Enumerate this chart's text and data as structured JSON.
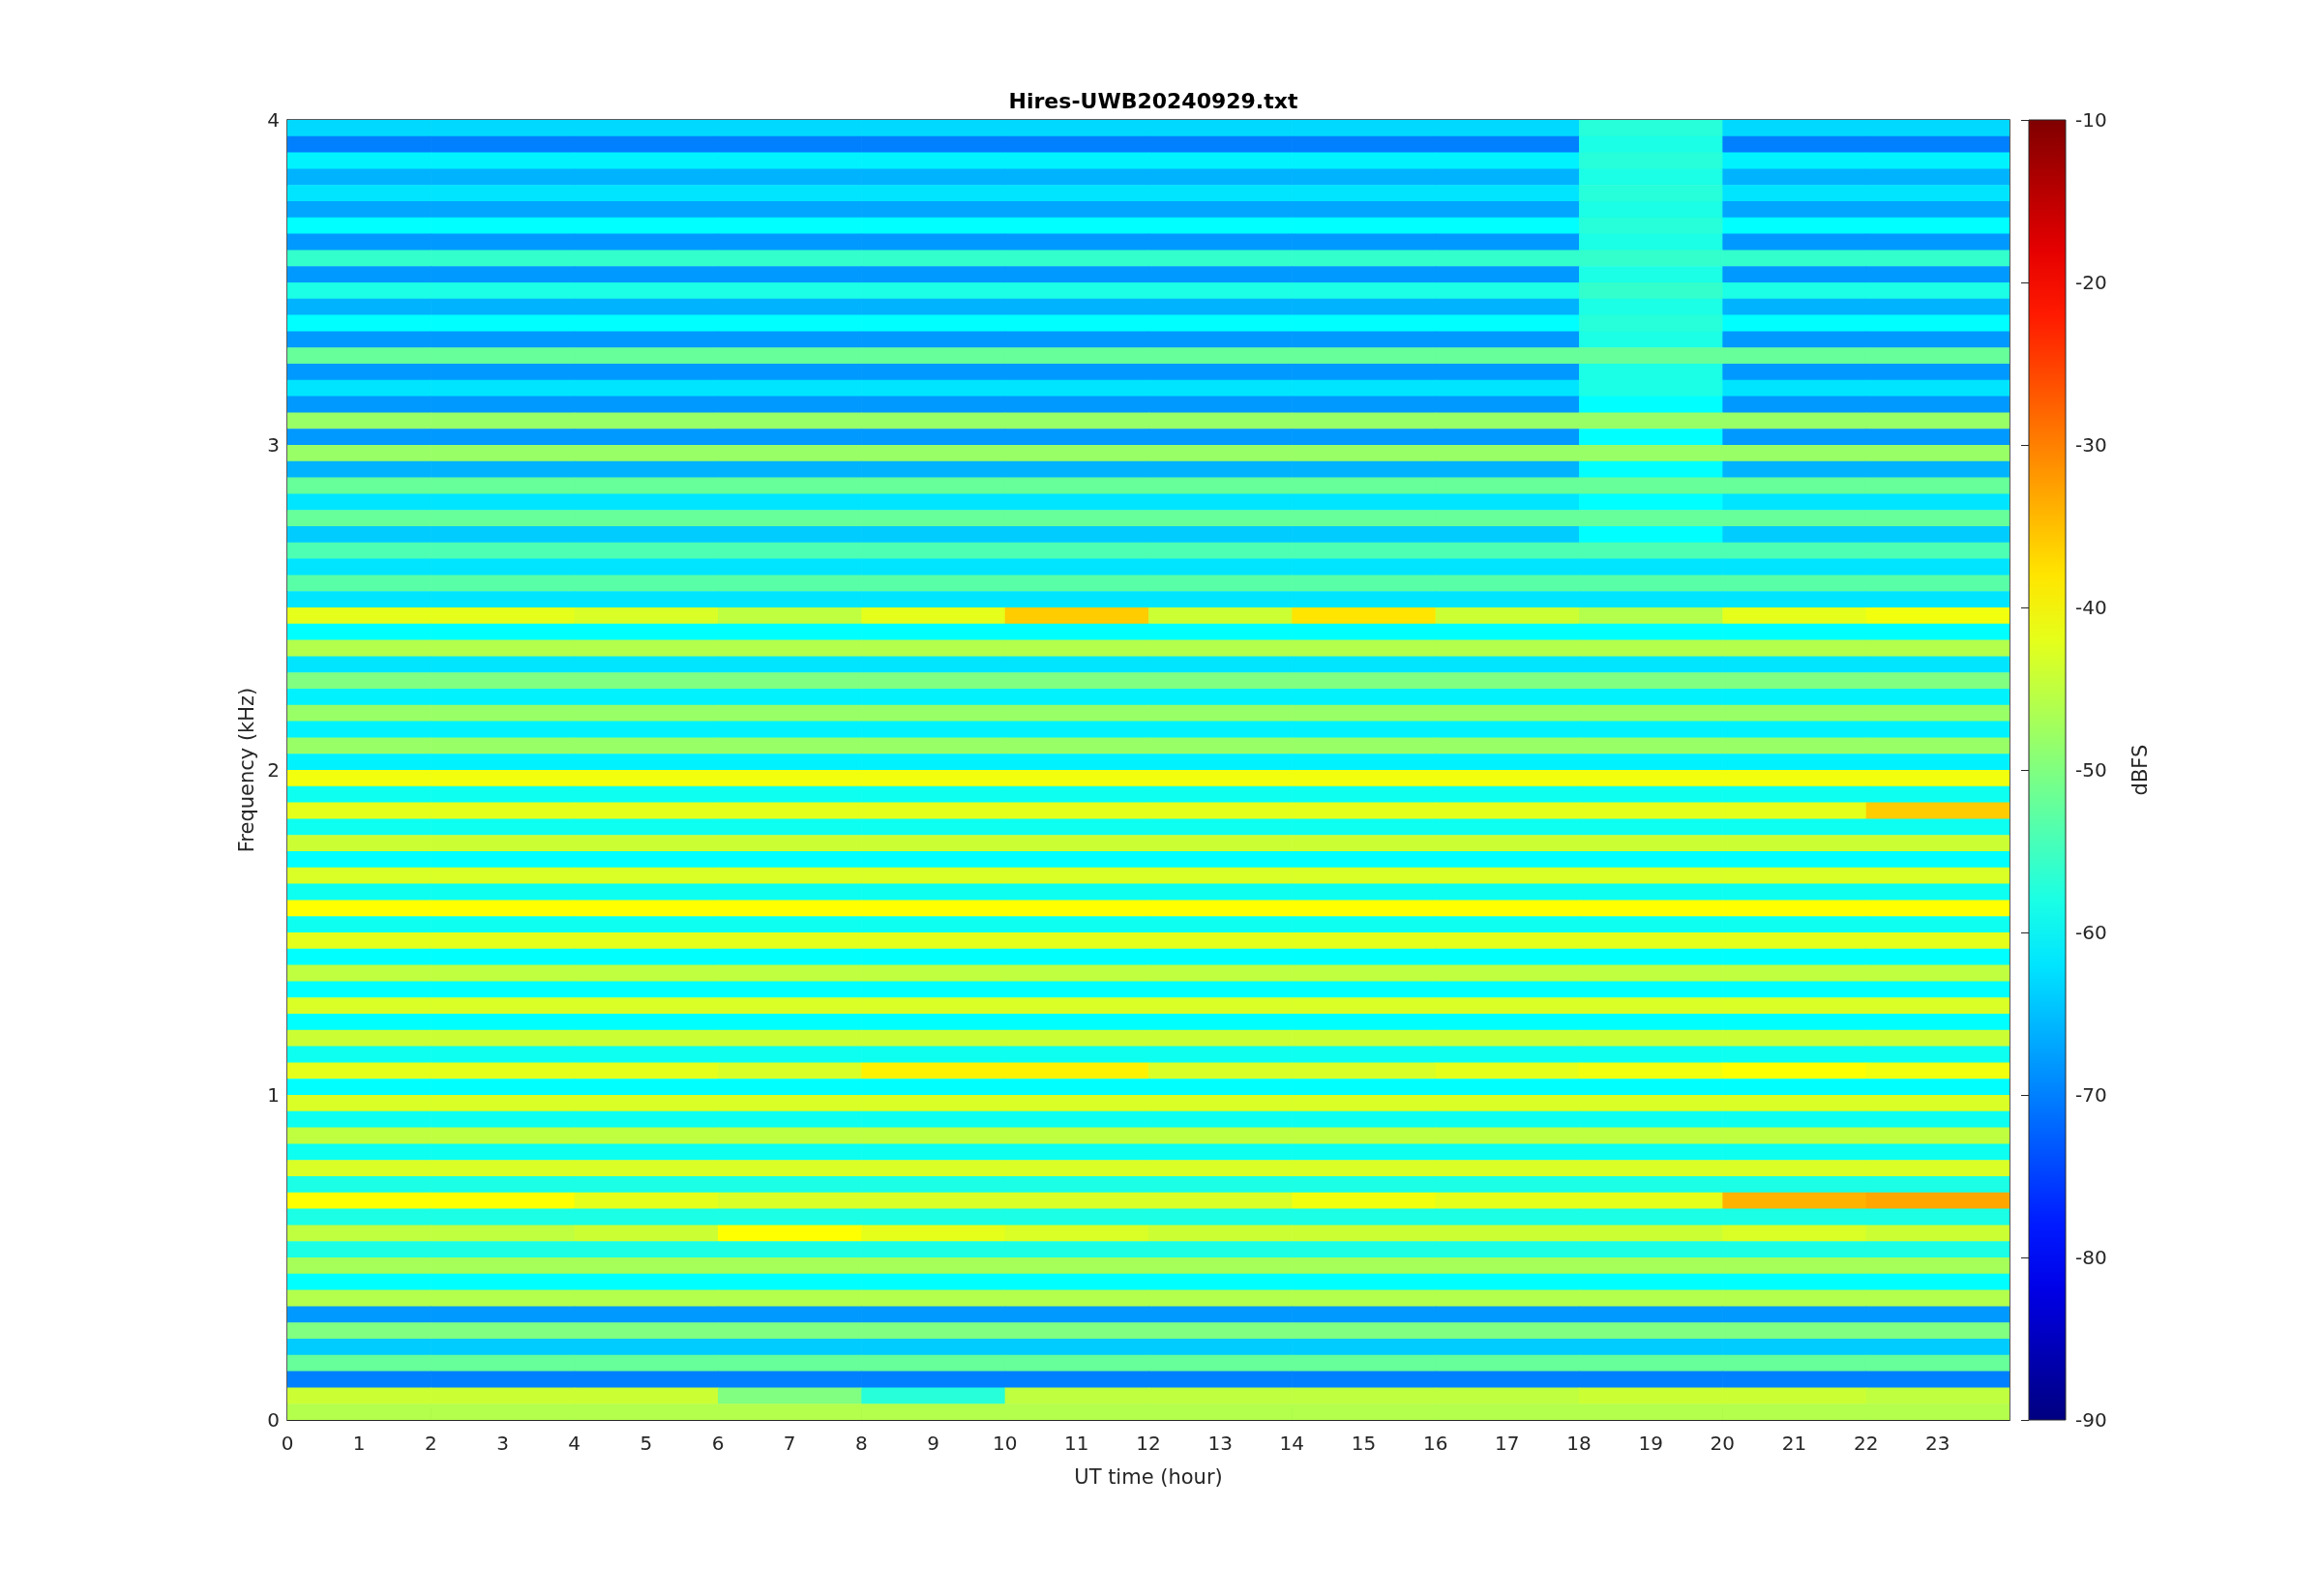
{
  "chart_data": {
    "type": "heatmap",
    "title": "Hires-UWB20240929.txt",
    "xlabel": "UT time (hour)",
    "ylabel": "Frequency (kHz)",
    "clabel": "dBFS",
    "x": [
      1,
      3,
      5,
      7,
      9,
      11,
      13,
      15,
      17,
      19,
      21,
      23
    ],
    "xlim": [
      0,
      24
    ],
    "xticks": [
      0,
      1,
      2,
      3,
      4,
      5,
      6,
      7,
      8,
      9,
      10,
      11,
      12,
      13,
      14,
      15,
      16,
      17,
      18,
      19,
      20,
      21,
      22,
      23
    ],
    "ylim": [
      0,
      4
    ],
    "yticks": [
      0,
      1,
      2,
      3,
      4
    ],
    "clim": [
      -90,
      -10
    ],
    "cticks": [
      -90,
      -80,
      -70,
      -60,
      -50,
      -40,
      -30,
      -20,
      -10
    ],
    "cells": [
      [
        -63,
        -63,
        -63,
        -63,
        -63,
        -63,
        -63,
        -63,
        -63,
        -57,
        -63,
        -63
      ],
      [
        -70,
        -70,
        -70,
        -70,
        -70,
        -70,
        -70,
        -70,
        -70,
        -58,
        -70,
        -70
      ],
      [
        -61,
        -61,
        -61,
        -61,
        -61,
        -61,
        -61,
        -61,
        -61,
        -57,
        -61,
        -61
      ],
      [
        -66,
        -66,
        -66,
        -66,
        -66,
        -66,
        -66,
        -66,
        -66,
        -58,
        -66,
        -66
      ],
      [
        -62,
        -62,
        -62,
        -62,
        -62,
        -62,
        -62,
        -62,
        -62,
        -57,
        -62,
        -62
      ],
      [
        -67,
        -67,
        -67,
        -67,
        -67,
        -67,
        -67,
        -67,
        -67,
        -58,
        -67,
        -67
      ],
      [
        -60,
        -60,
        -60,
        -60,
        -60,
        -60,
        -60,
        -60,
        -60,
        -57,
        -60,
        -60
      ],
      [
        -68,
        -68,
        -68,
        -68,
        -68,
        -68,
        -68,
        -68,
        -68,
        -58,
        -68,
        -68
      ],
      [
        -56,
        -56,
        -56,
        -56,
        -56,
        -56,
        -56,
        -56,
        -56,
        -56,
        -56,
        -56
      ],
      [
        -68,
        -68,
        -68,
        -68,
        -68,
        -68,
        -68,
        -68,
        -68,
        -58,
        -68,
        -68
      ],
      [
        -58,
        -58,
        -58,
        -58,
        -58,
        -58,
        -58,
        -58,
        -58,
        -56,
        -58,
        -58
      ],
      [
        -66,
        -66,
        -66,
        -66,
        -66,
        -66,
        -66,
        -66,
        -66,
        -58,
        -66,
        -66
      ],
      [
        -60,
        -60,
        -60,
        -60,
        -60,
        -60,
        -60,
        -60,
        -60,
        -57,
        -60,
        -60
      ],
      [
        -68,
        -68,
        -68,
        -68,
        -68,
        -68,
        -68,
        -68,
        -68,
        -58,
        -68,
        -68
      ],
      [
        -52,
        -52,
        -52,
        -52,
        -52,
        -52,
        -52,
        -52,
        -52,
        -52,
        -52,
        -52
      ],
      [
        -68,
        -68,
        -68,
        -68,
        -68,
        -68,
        -68,
        -68,
        -68,
        -58,
        -68,
        -68
      ],
      [
        -62,
        -62,
        -62,
        -62,
        -62,
        -62,
        -62,
        -62,
        -62,
        -58,
        -62,
        -62
      ],
      [
        -68,
        -68,
        -68,
        -68,
        -68,
        -68,
        -68,
        -68,
        -68,
        -60,
        -68,
        -68
      ],
      [
        -48,
        -48,
        -48,
        -48,
        -48,
        -48,
        -48,
        -48,
        -48,
        -48,
        -48,
        -48
      ],
      [
        -68,
        -68,
        -68,
        -68,
        -68,
        -68,
        -68,
        -68,
        -68,
        -60,
        -68,
        -68
      ],
      [
        -48,
        -48,
        -48,
        -48,
        -48,
        -48,
        -48,
        -48,
        -48,
        -48,
        -48,
        -48
      ],
      [
        -66,
        -66,
        -66,
        -66,
        -66,
        -66,
        -66,
        -66,
        -66,
        -60,
        -66,
        -66
      ],
      [
        -52,
        -52,
        -52,
        -52,
        -52,
        -52,
        -52,
        -52,
        -52,
        -52,
        -52,
        -52
      ],
      [
        -62,
        -62,
        -62,
        -62,
        -62,
        -62,
        -62,
        -62,
        -62,
        -60,
        -62,
        -62
      ],
      [
        -52,
        -52,
        -52,
        -52,
        -52,
        -52,
        -52,
        -52,
        -52,
        -52,
        -52,
        -52
      ],
      [
        -64,
        -64,
        -64,
        -64,
        -64,
        -64,
        -64,
        -64,
        -64,
        -60,
        -64,
        -64
      ],
      [
        -54,
        -54,
        -54,
        -54,
        -54,
        -54,
        -54,
        -54,
        -54,
        -54,
        -54,
        -54
      ],
      [
        -62,
        -62,
        -62,
        -62,
        -62,
        -62,
        -62,
        -62,
        -62,
        -62,
        -62,
        -62
      ],
      [
        -53,
        -53,
        -53,
        -53,
        -53,
        -53,
        -53,
        -53,
        -53,
        -53,
        -53,
        -53
      ],
      [
        -62,
        -62,
        -62,
        -62,
        -62,
        -62,
        -62,
        -62,
        -62,
        -62,
        -62,
        -62
      ],
      [
        -42,
        -42,
        -43,
        -45,
        -42,
        -36,
        -44,
        -38,
        -44,
        -46,
        -42,
        -41
      ],
      [
        -60,
        -60,
        -60,
        -60,
        -60,
        -60,
        -60,
        -60,
        -60,
        -60,
        -60,
        -60
      ],
      [
        -46,
        -46,
        -46,
        -46,
        -46,
        -46,
        -46,
        -46,
        -46,
        -46,
        -46,
        -46
      ],
      [
        -62,
        -62,
        -62,
        -62,
        -62,
        -62,
        -62,
        -62,
        -62,
        -62,
        -62,
        -62
      ],
      [
        -50,
        -50,
        -50,
        -50,
        -50,
        -50,
        -50,
        -50,
        -50,
        -50,
        -50,
        -50
      ],
      [
        -61,
        -61,
        -61,
        -61,
        -61,
        -61,
        -61,
        -61,
        -61,
        -61,
        -61,
        -61
      ],
      [
        -48,
        -48,
        -48,
        -48,
        -48,
        -48,
        -48,
        -48,
        -48,
        -48,
        -48,
        -48
      ],
      [
        -61,
        -61,
        -61,
        -61,
        -61,
        -61,
        -61,
        -61,
        -61,
        -61,
        -61,
        -61
      ],
      [
        -48,
        -48,
        -48,
        -48,
        -48,
        -48,
        -48,
        -48,
        -48,
        -48,
        -48,
        -48
      ],
      [
        -61,
        -61,
        -61,
        -61,
        -61,
        -61,
        -61,
        -61,
        -61,
        -61,
        -61,
        -61
      ],
      [
        -41,
        -41,
        -41,
        -41,
        -41,
        -41,
        -41,
        -41,
        -41,
        -41,
        -41,
        -41
      ],
      [
        -59,
        -59,
        -59,
        -59,
        -59,
        -59,
        -59,
        -59,
        -59,
        -59,
        -59,
        -59
      ],
      [
        -42,
        -42,
        -42,
        -42,
        -42,
        -42,
        -42,
        -42,
        -42,
        -42,
        -42,
        -36
      ],
      [
        -59,
        -59,
        -59,
        -59,
        -59,
        -59,
        -59,
        -59,
        -59,
        -59,
        -59,
        -59
      ],
      [
        -44,
        -44,
        -44,
        -44,
        -44,
        -44,
        -44,
        -44,
        -44,
        -44,
        -44,
        -44
      ],
      [
        -60,
        -60,
        -60,
        -60,
        -60,
        -60,
        -60,
        -60,
        -60,
        -60,
        -60,
        -60
      ],
      [
        -43,
        -43,
        -43,
        -43,
        -43,
        -43,
        -43,
        -43,
        -43,
        -43,
        -43,
        -43
      ],
      [
        -59,
        -59,
        -59,
        -59,
        -59,
        -59,
        -59,
        -59,
        -59,
        -59,
        -59,
        -59
      ],
      [
        -40,
        -40,
        -40,
        -40,
        -40,
        -40,
        -40,
        -40,
        -40,
        -40,
        -40,
        -40
      ],
      [
        -59,
        -59,
        -59,
        -59,
        -59,
        -59,
        -59,
        -59,
        -59,
        -59,
        -59,
        -59
      ],
      [
        -42,
        -42,
        -42,
        -42,
        -42,
        -42,
        -42,
        -42,
        -42,
        -42,
        -42,
        -42
      ],
      [
        -60,
        -60,
        -60,
        -60,
        -60,
        -60,
        -60,
        -60,
        -60,
        -60,
        -60,
        -60
      ],
      [
        -45,
        -45,
        -45,
        -45,
        -45,
        -45,
        -45,
        -45,
        -45,
        -45,
        -45,
        -45
      ],
      [
        -60,
        -60,
        -60,
        -60,
        -60,
        -60,
        -60,
        -60,
        -60,
        -60,
        -60,
        -60
      ],
      [
        -43,
        -43,
        -43,
        -43,
        -43,
        -43,
        -43,
        -43,
        -43,
        -43,
        -43,
        -43
      ],
      [
        -60,
        -60,
        -60,
        -60,
        -60,
        -60,
        -60,
        -60,
        -60,
        -60,
        -60,
        -60
      ],
      [
        -44,
        -44,
        -44,
        -44,
        -44,
        -44,
        -44,
        -44,
        -44,
        -44,
        -44,
        -44
      ],
      [
        -59,
        -59,
        -59,
        -59,
        -59,
        -59,
        -59,
        -59,
        -59,
        -59,
        -59,
        -59
      ],
      [
        -42,
        -42,
        -42,
        -43,
        -39,
        -39,
        -43,
        -43,
        -42,
        -41,
        -40,
        -41
      ],
      [
        -60,
        -60,
        -60,
        -60,
        -60,
        -60,
        -60,
        -60,
        -60,
        -60,
        -60,
        -60
      ],
      [
        -43,
        -43,
        -43,
        -43,
        -43,
        -43,
        -43,
        -43,
        -43,
        -43,
        -43,
        -43
      ],
      [
        -59,
        -59,
        -59,
        -59,
        -59,
        -59,
        -59,
        -59,
        -59,
        -59,
        -59,
        -59
      ],
      [
        -45,
        -45,
        -45,
        -45,
        -45,
        -45,
        -45,
        -45,
        -45,
        -45,
        -45,
        -45
      ],
      [
        -59,
        -59,
        -59,
        -59,
        -59,
        -59,
        -59,
        -59,
        -59,
        -59,
        -59,
        -59
      ],
      [
        -43,
        -43,
        -43,
        -43,
        -43,
        -43,
        -43,
        -43,
        -43,
        -43,
        -43,
        -43
      ],
      [
        -58,
        -58,
        -58,
        -58,
        -58,
        -58,
        -58,
        -58,
        -58,
        -58,
        -58,
        -58
      ],
      [
        -40,
        -40,
        -42,
        -43,
        -43,
        -43,
        -43,
        -41,
        -42,
        -42,
        -34,
        -33
      ],
      [
        -58,
        -58,
        -58,
        -58,
        -58,
        -58,
        -58,
        -58,
        -58,
        -58,
        -58,
        -58
      ],
      [
        -45,
        -45,
        -44,
        -40,
        -42,
        -43,
        -44,
        -44,
        -44,
        -44,
        -43,
        -44
      ],
      [
        -58,
        -58,
        -58,
        -58,
        -58,
        -58,
        -58,
        -58,
        -58,
        -58,
        -58,
        -58
      ],
      [
        -47,
        -47,
        -47,
        -47,
        -47,
        -47,
        -47,
        -47,
        -47,
        -47,
        -47,
        -47
      ],
      [
        -60,
        -60,
        -60,
        -60,
        -60,
        -60,
        -60,
        -60,
        -60,
        -60,
        -60,
        -60
      ],
      [
        -46,
        -46,
        -46,
        -46,
        -46,
        -46,
        -46,
        -46,
        -46,
        -46,
        -46,
        -46
      ],
      [
        -68,
        -68,
        -68,
        -68,
        -68,
        -68,
        -68,
        -68,
        -68,
        -68,
        -68,
        -68
      ],
      [
        -50,
        -50,
        -50,
        -50,
        -50,
        -50,
        -50,
        -50,
        -50,
        -50,
        -50,
        -50
      ],
      [
        -64,
        -64,
        -64,
        -64,
        -64,
        -64,
        -64,
        -64,
        -64,
        -64,
        -64,
        -64
      ],
      [
        -52,
        -52,
        -52,
        -52,
        -52,
        -52,
        -52,
        -52,
        -52,
        -52,
        -52,
        -52
      ],
      [
        -70,
        -70,
        -70,
        -70,
        -70,
        -70,
        -70,
        -70,
        -70,
        -70,
        -70,
        -70
      ],
      [
        -44,
        -44,
        -44,
        -50,
        -57,
        -45,
        -45,
        -45,
        -45,
        -44,
        -44,
        -45
      ],
      [
        -46,
        -46,
        -46,
        -46,
        -46,
        -46,
        -46,
        -46,
        -46,
        -46,
        -46,
        -46
      ]
    ]
  }
}
